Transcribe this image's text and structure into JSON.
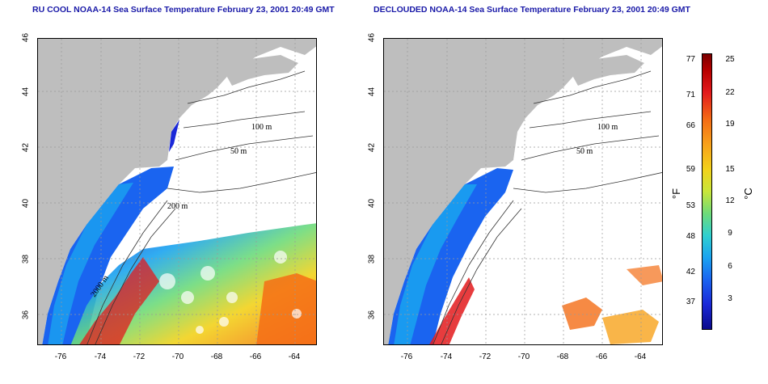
{
  "panels": [
    {
      "title": "RU COOL NOAA-14 Sea Surface Temperature February 23, 2001 20:49 GMT"
    },
    {
      "title": "DECLOUDED NOAA-14 Sea Surface Temperature February 23, 2001 20:49 GMT"
    }
  ],
  "axes": {
    "lat_ticks": [
      "36",
      "38",
      "40",
      "42",
      "44",
      "46"
    ],
    "lon_ticks": [
      "-76",
      "-74",
      "-72",
      "-70",
      "-68",
      "-66",
      "-64"
    ]
  },
  "contour_labels": [
    "100 m",
    "100 m",
    "50 m",
    "200 m",
    "50 m",
    "2000 m"
  ],
  "colorbar": {
    "fahrenheit_ticks": [
      "77",
      "71",
      "66",
      "59",
      "53",
      "48",
      "42",
      "37"
    ],
    "celsius_ticks": [
      "25",
      "22",
      "19",
      "15",
      "12",
      "9",
      "6",
      "3"
    ],
    "fahrenheit_unit": "°F",
    "celsius_unit": "°C"
  },
  "colors": {
    "title": "#1a1aa8",
    "land": "#bebebe",
    "cold": "#0b0a8c",
    "warm": "#b80000"
  }
}
